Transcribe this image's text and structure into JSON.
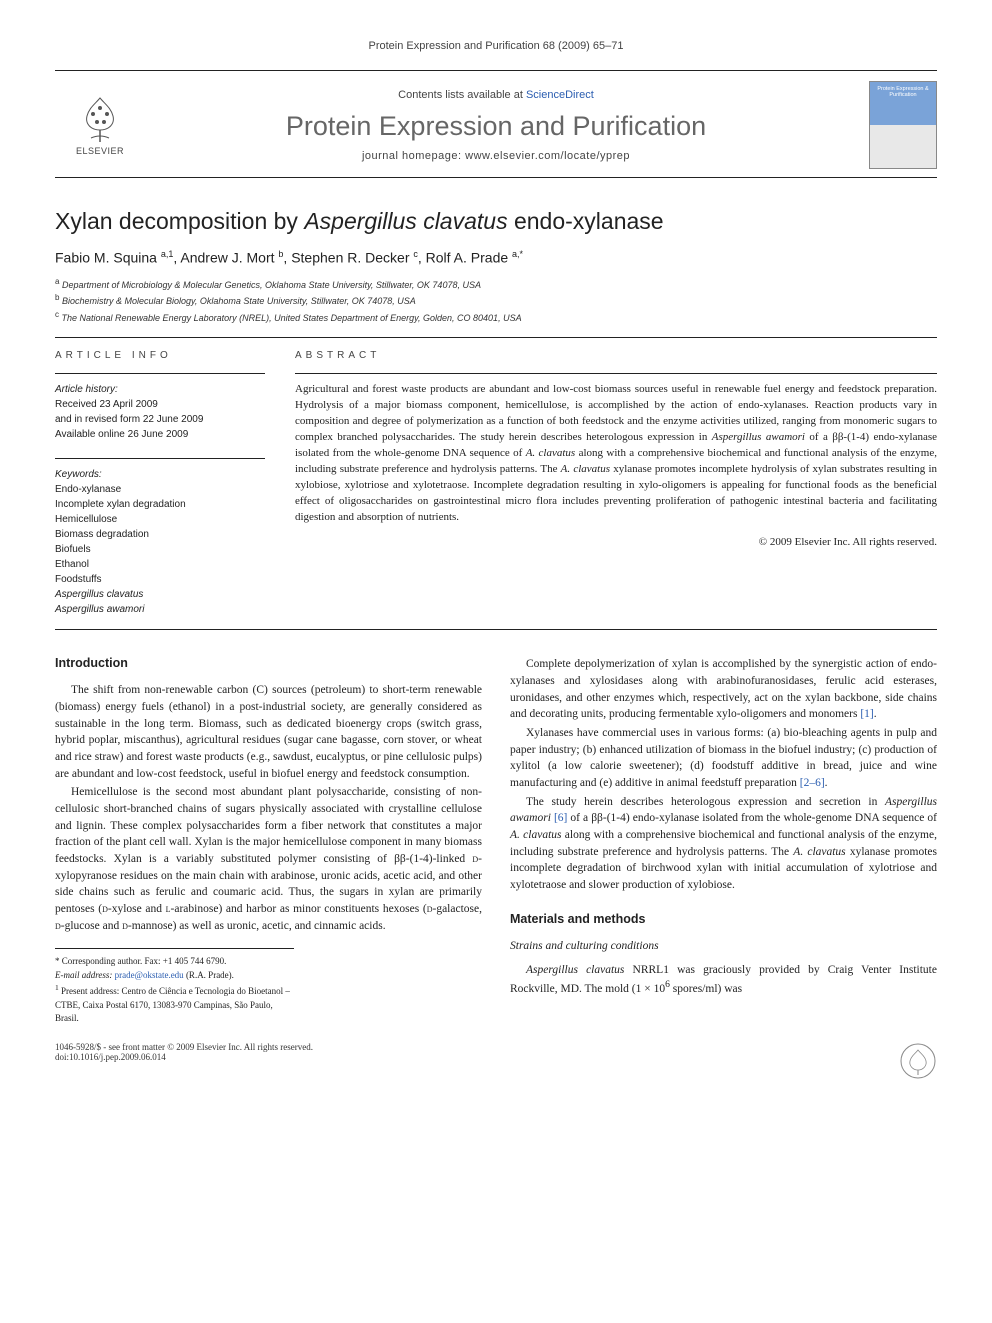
{
  "running_head": "Protein Expression and Purification 68 (2009) 65–71",
  "masthead": {
    "publisher": "ELSEVIER",
    "contents_prefix": "Contents lists available at ",
    "contents_link": "ScienceDirect",
    "journal_title": "Protein Expression and Purification",
    "homepage_prefix": "journal homepage: ",
    "homepage_url": "www.elsevier.com/locate/yprep",
    "cover_title": "Protein Expression & Purification"
  },
  "article": {
    "title_pre": "Xylan decomposition by ",
    "title_species": "Aspergillus clavatus",
    "title_post": " endo-xylanase",
    "authors_html": "Fabio M. Squina <sup>a,1</sup>, Andrew J. Mort <sup>b</sup>, Stephen R. Decker <sup>c</sup>, Rolf A. Prade <sup>a,*</sup>",
    "affiliations": [
      {
        "sup": "a",
        "text": "Department of Microbiology & Molecular Genetics, Oklahoma State University, Stillwater, OK 74078, USA"
      },
      {
        "sup": "b",
        "text": "Biochemistry & Molecular Biology, Oklahoma State University, Stillwater, OK 74078, USA"
      },
      {
        "sup": "c",
        "text": "The National Renewable Energy Laboratory (NREL), United States Department of Energy, Golden, CO 80401, USA"
      }
    ]
  },
  "info": {
    "section_label": "article info",
    "history_label": "Article history:",
    "history_lines": [
      "Received 23 April 2009",
      "and in revised form 22 June 2009",
      "Available online 26 June 2009"
    ],
    "keywords_label": "Keywords:",
    "keywords": [
      {
        "text": "Endo-xylanase",
        "italic": false
      },
      {
        "text": "Incomplete xylan degradation",
        "italic": false
      },
      {
        "text": "Hemicellulose",
        "italic": false
      },
      {
        "text": "Biomass degradation",
        "italic": false
      },
      {
        "text": "Biofuels",
        "italic": false
      },
      {
        "text": "Ethanol",
        "italic": false
      },
      {
        "text": "Foodstuffs",
        "italic": false
      },
      {
        "text": "Aspergillus clavatus",
        "italic": true
      },
      {
        "text": "Aspergillus awamori",
        "italic": true
      }
    ]
  },
  "abstract": {
    "section_label": "abstract",
    "text_html": "Agricultural and forest waste products are abundant and low-cost biomass sources useful in renewable fuel energy and feedstock preparation. Hydrolysis of a major biomass component, hemicellulose, is accomplished by the action of endo-xylanases. Reaction products vary in composition and degree of polymerization as a function of both feedstock and the enzyme activities utilized, ranging from monomeric sugars to complex branched polysaccharides. The study herein describes heterologous expression in <span class=\"species\">Aspergillus awamori</span> of a ββ-(1-4) endo-xylanase isolated from the whole-genome DNA sequence of <span class=\"species\">A. clavatus</span> along with a comprehensive biochemical and functional analysis of the enzyme, including substrate preference and hydrolysis patterns. The <span class=\"species\">A. clavatus</span> xylanase promotes incomplete hydrolysis of xylan substrates resulting in xylobiose, xylotriose and xylotetraose. Incomplete degradation resulting in xylo-oligomers is appealing for functional foods as the beneficial effect of oligosaccharides on gastrointestinal micro flora includes preventing proliferation of pathogenic intestinal bacteria and facilitating digestion and absorption of nutrients.",
    "copyright": "© 2009 Elsevier Inc. All rights reserved."
  },
  "body": {
    "left": {
      "heading": "Introduction",
      "paras": [
        "The shift from non-renewable carbon (C) sources (petroleum) to short-term renewable (biomass) energy fuels (ethanol) in a post-industrial society, are generally considered as sustainable in the long term. Biomass, such as dedicated bioenergy crops (switch grass, hybrid poplar, miscanthus), agricultural residues (sugar cane bagasse, corn stover, or wheat and rice straw) and forest waste products (e.g., sawdust, eucalyptus, or pine cellulosic pulps) are abundant and low-cost feedstock, useful in biofuel energy and feedstock consumption.",
        "Hemicellulose is the second most abundant plant polysaccharide, consisting of non-cellulosic short-branched chains of sugars physically associated with crystalline cellulose and lignin. These complex polysaccharides form a fiber network that constitutes a major fraction of the plant cell wall. Xylan is the major hemicellulose component in many biomass feedstocks. Xylan is a variably substituted polymer consisting of ββ-(1-4)-linked <span class=\"smallcaps\">d</span>-xylopyranose residues on the main chain with arabinose, uronic acids, acetic acid, and other side chains such as ferulic and coumaric acid. Thus, the sugars in xylan are primarily pentoses (<span class=\"smallcaps\">d</span>-xylose and <span class=\"smallcaps\">l</span>-arabinose) and harbor as minor constituents hexoses (<span class=\"smallcaps\">d</span>-galactose, <span class=\"smallcaps\">d</span>-glucose and <span class=\"smallcaps\">d</span>-mannose) as well as uronic, acetic, and cinnamic acids."
      ]
    },
    "right": {
      "paras": [
        "Complete depolymerization of xylan is accomplished by the synergistic action of endo-xylanases and xylosidases along with arabinofuranosidases, ferulic acid esterases, uronidases, and other enzymes which, respectively, act on the xylan backbone, side chains and decorating units, producing fermentable xylo-oligomers and monomers <span class=\"ref\">[1]</span>.",
        "Xylanases have commercial uses in various forms: (a) bio-bleaching agents in pulp and paper industry; (b) enhanced utilization of biomass in the biofuel industry; (c) production of xylitol (a low calorie sweetener); (d) foodstuff additive in bread, juice and wine manufacturing and (e) additive in animal feedstuff preparation <span class=\"ref\">[2–6]</span>.",
        "The study herein describes heterologous expression and secretion in <span class=\"species\">Aspergillus awamori</span> <span class=\"ref\">[6]</span> of a ββ-(1-4) endo-xylanase isolated from the whole-genome DNA sequence of <span class=\"species\">A. clavatus</span> along with a comprehensive biochemical and functional analysis of the enzyme, including substrate preference and hydrolysis patterns. The <span class=\"species\">A. clavatus</span> xylanase promotes incomplete degradation of birchwood xylan with initial accumulation of xylotriose and xylotetraose and slower production of xylobiose."
      ],
      "heading2": "Materials and methods",
      "subheading": "Strains and culturing conditions",
      "para_mm": "<span class=\"species\">Aspergillus clavatus</span> NRRL1 was graciously provided by Craig Venter Institute Rockville, MD. The mold (1 × 10<sup>6</sup> spores/ml) was"
    }
  },
  "footnotes": {
    "corr_label": "* Corresponding author. Fax: +1 405 744 6790.",
    "email_label": "E-mail address:",
    "email": "prade@okstate.edu",
    "email_person": "(R.A. Prade).",
    "present_label": "1",
    "present_text": "Present address: Centro de Ciência e Tecnologia do Bioetanol – CTBE, Caixa Postal 6170, 13083-970 Campinas, São Paulo, Brasil."
  },
  "footer": {
    "left_line1": "1046-5928/$ - see front matter © 2009 Elsevier Inc. All rights reserved.",
    "left_line2": "doi:10.1016/j.pep.2009.06.014"
  },
  "colors": {
    "link": "#2a5db0",
    "text": "#222222",
    "muted": "#666666",
    "rule": "#222222",
    "elsevier_orange": "#ff8a00"
  }
}
